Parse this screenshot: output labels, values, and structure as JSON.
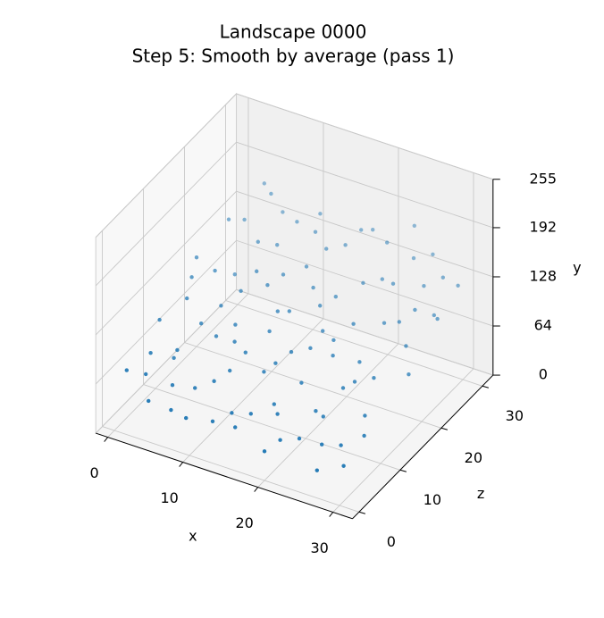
{
  "chart_data": {
    "type": "scatter3d",
    "title": "Landscape 0000",
    "subtitle": "Step 5: Smooth by average (pass 1)",
    "xlabel": "x",
    "ylabel": "y",
    "zlabel": "z",
    "color": "#1f77b4",
    "xlim": [
      -1.6,
      32.6
    ],
    "zlim": [
      -1.6,
      32.6
    ],
    "ylim": [
      0,
      255
    ],
    "xticks": [
      0,
      10,
      20,
      30
    ],
    "zticks": [
      0,
      10,
      20,
      30
    ],
    "yticks": [
      0,
      64,
      128,
      192,
      255
    ],
    "grid": true,
    "x": [
      0,
      1,
      2,
      3,
      4,
      5,
      6,
      7,
      8,
      9,
      10,
      11,
      12,
      13,
      14,
      15,
      16,
      17,
      18,
      19,
      20,
      21,
      22,
      23,
      24,
      25,
      26,
      27,
      28,
      29,
      30,
      31,
      0,
      1,
      2,
      3,
      4,
      5,
      6,
      7,
      8,
      9,
      10,
      11,
      12,
      13,
      14,
      15,
      16,
      17,
      18,
      19,
      20,
      21,
      22,
      23,
      24,
      25,
      26,
      27,
      28,
      29,
      30,
      31,
      0,
      1,
      2,
      3,
      4,
      5,
      6,
      7,
      8,
      9,
      10,
      11,
      12,
      13,
      14,
      15,
      16,
      17,
      18,
      19,
      20,
      21,
      22,
      23,
      24,
      25,
      26,
      27,
      28,
      29,
      30,
      31
    ],
    "z": [
      3,
      17,
      28,
      9,
      22,
      5,
      30,
      12,
      25,
      1,
      19,
      8,
      27,
      14,
      3,
      21,
      10,
      29,
      6,
      16,
      24,
      2,
      13,
      31,
      7,
      20,
      11,
      26,
      4,
      18,
      23,
      15,
      11,
      26,
      4,
      19,
      8,
      29,
      15,
      1,
      20,
      13,
      6,
      30,
      10,
      23,
      17,
      2,
      27,
      12,
      21,
      5,
      9,
      28,
      18,
      3,
      24,
      14,
      30,
      0,
      22,
      8,
      1,
      27,
      20,
      7,
      14,
      31,
      1,
      12,
      24,
      18,
      5,
      28,
      11,
      21,
      2,
      16,
      26,
      9,
      4,
      19,
      30,
      13,
      0,
      15,
      25,
      7,
      29,
      10,
      3,
      20,
      12,
      27,
      6,
      22
    ],
    "y": [
      62,
      110,
      128,
      55,
      96,
      48,
      140,
      80,
      131,
      40,
      118,
      70,
      150,
      95,
      52,
      120,
      85,
      158,
      60,
      104,
      126,
      45,
      98,
      172,
      58,
      112,
      88,
      134,
      50,
      106,
      122,
      92,
      84,
      136,
      58,
      114,
      74,
      166,
      100,
      44,
      124,
      96,
      64,
      154,
      86,
      130,
      108,
      42,
      146,
      92,
      118,
      56,
      78,
      160,
      112,
      48,
      138,
      94,
      150,
      36,
      128,
      70,
      46,
      142,
      116,
      66,
      102,
      162,
      46,
      90,
      134,
      106,
      54,
      148,
      88,
      124,
      40,
      110,
      140,
      76,
      52,
      114,
      156,
      98,
      38,
      104,
      132,
      62,
      144,
      82,
      50,
      120,
      94,
      146,
      58,
      126
    ]
  }
}
